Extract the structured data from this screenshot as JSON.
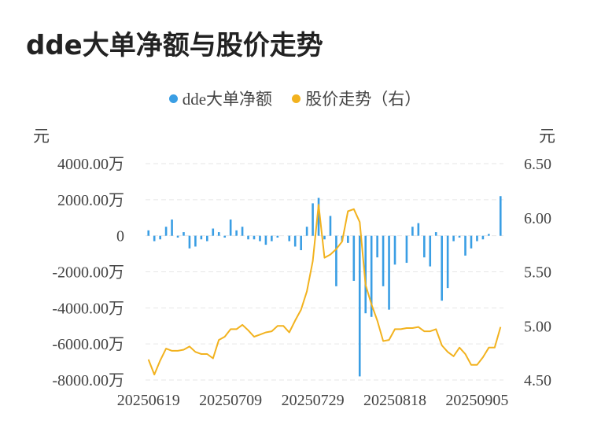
{
  "title": "dde大单净额与股价走势",
  "legend": [
    {
      "name": "dde大单净额",
      "color": "#3a9ee4"
    },
    {
      "name": "股价走势（右）",
      "color": "#f2b21e"
    }
  ],
  "left_unit": "元",
  "right_unit": "元",
  "chart_data": {
    "type": "bar+line",
    "left_axis": {
      "ticks": [
        4000,
        2000,
        0,
        -2000,
        -4000,
        -6000,
        -8000
      ],
      "tick_labels": [
        "4000.00万",
        "2000.00万",
        "0",
        "-2000.00万",
        "-4000.00万",
        "-6000.00万",
        "-8000.00万"
      ],
      "range": [
        -8000,
        4000
      ]
    },
    "right_axis": {
      "ticks": [
        6.5,
        6.0,
        5.5,
        5.0,
        4.5
      ],
      "tick_labels": [
        "6.50",
        "6.00",
        "5.50",
        "5.00",
        "4.50"
      ],
      "range": [
        4.5,
        6.5
      ]
    },
    "x_tick_labels": [
      {
        "index": 0,
        "label": "20250619"
      },
      {
        "index": 14,
        "label": "20250709"
      },
      {
        "index": 28,
        "label": "20250729"
      },
      {
        "index": 42,
        "label": "20250818"
      },
      {
        "index": 56,
        "label": "20250905"
      }
    ],
    "grid": true,
    "series": [
      {
        "name": "dde大单净额",
        "type": "bar",
        "color": "#3a9ee4",
        "values": [
          300,
          -300,
          -200,
          500,
          900,
          -100,
          200,
          -700,
          -600,
          -200,
          -300,
          400,
          200,
          -100,
          900,
          300,
          500,
          -200,
          -200,
          -300,
          -500,
          -300,
          -100,
          0,
          -300,
          -600,
          -800,
          500,
          1800,
          2100,
          -200,
          1100,
          -2800,
          -300,
          -400,
          -2500,
          -7800,
          -4300,
          -4500,
          -1200,
          -2800,
          -4100,
          -1600,
          0,
          -1500,
          500,
          700,
          -1200,
          -1700,
          200,
          -3600,
          -2900,
          -300,
          -100,
          -1100,
          -700,
          -300,
          -200,
          100,
          0,
          2200
        ]
      },
      {
        "name": "股价走势（右）",
        "type": "line",
        "color": "#f2b21e",
        "values": [
          4.69,
          4.55,
          4.68,
          4.79,
          4.77,
          4.77,
          4.78,
          4.81,
          4.76,
          4.74,
          4.74,
          4.7,
          4.87,
          4.9,
          4.97,
          4.97,
          5.01,
          4.96,
          4.9,
          4.92,
          4.94,
          4.95,
          5.0,
          5.0,
          4.94,
          5.05,
          5.15,
          5.32,
          5.6,
          6.12,
          5.63,
          5.66,
          5.71,
          5.78,
          6.06,
          6.08,
          5.96,
          5.38,
          5.2,
          5.05,
          4.86,
          4.87,
          4.97,
          4.97,
          4.98,
          4.98,
          4.99,
          4.95,
          4.95,
          4.97,
          4.82,
          4.76,
          4.72,
          4.8,
          4.74,
          4.64,
          4.64,
          4.71,
          4.8,
          4.8,
          4.99
        ]
      }
    ]
  }
}
